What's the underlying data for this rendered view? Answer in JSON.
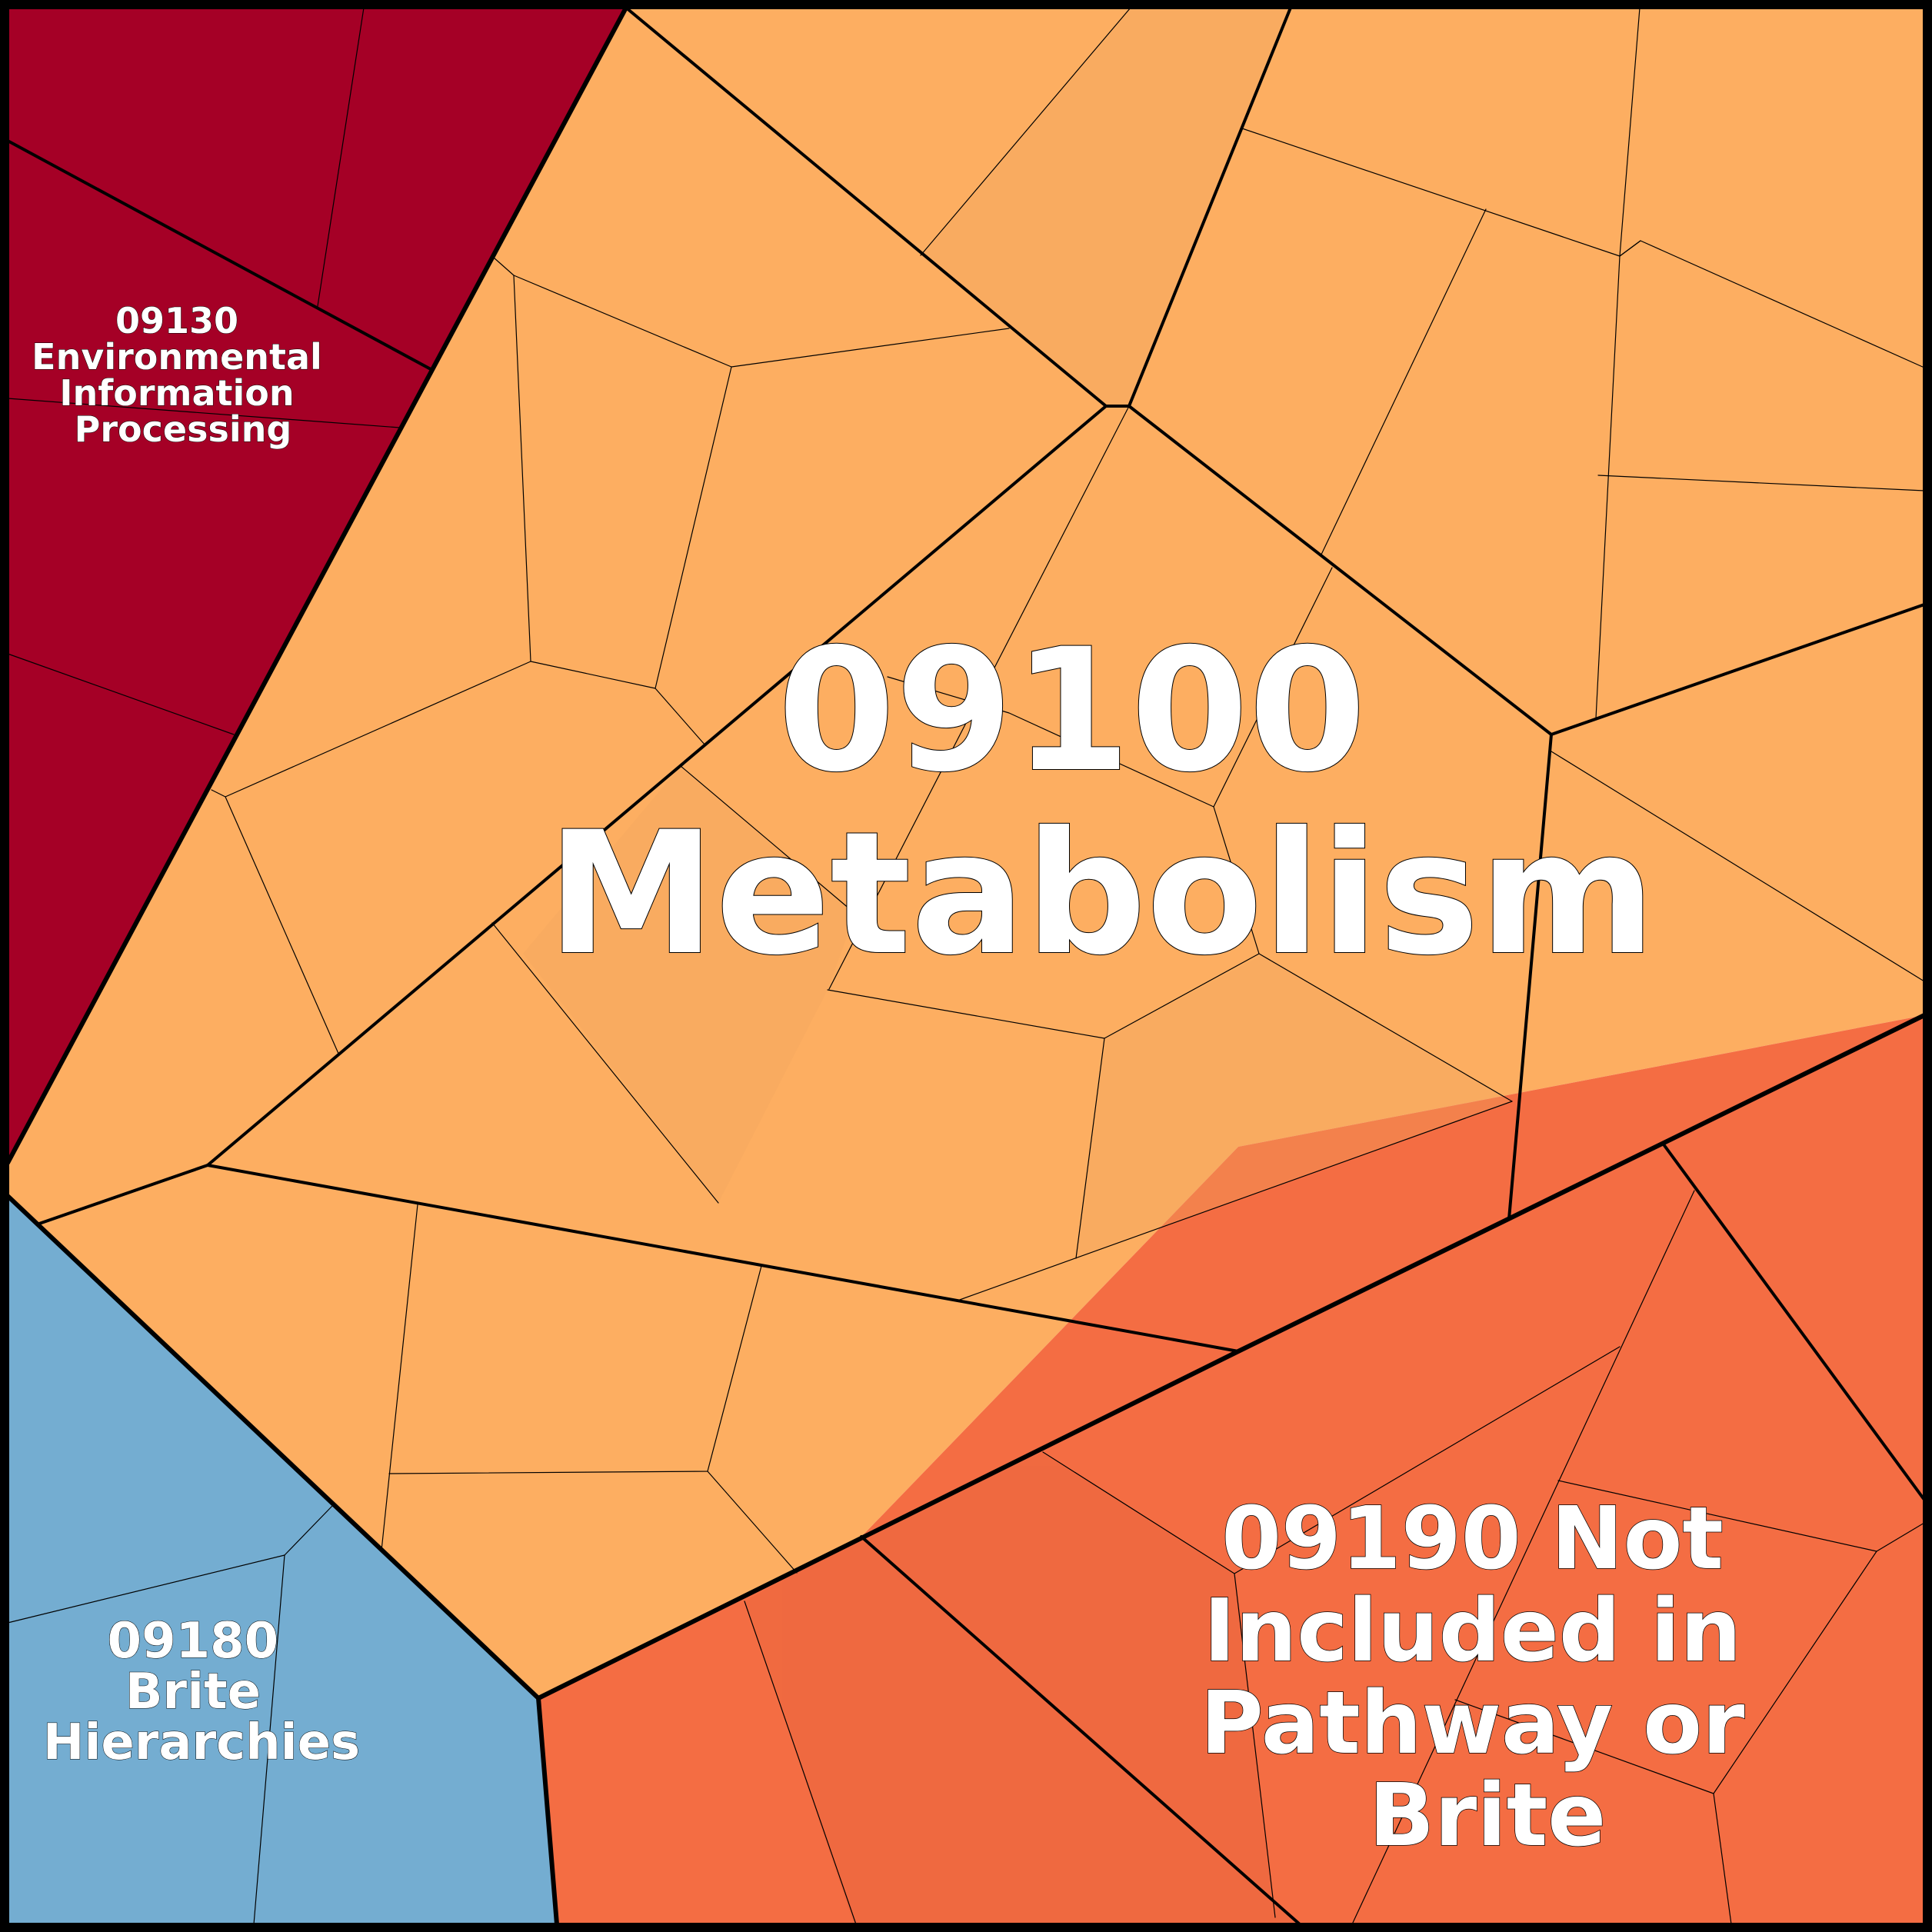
{
  "regions": [
    {
      "code": "09100",
      "name": "Metabolism",
      "label_lines": [
        "09100",
        "Metabolism"
      ],
      "color": "#FDAE61"
    },
    {
      "code": "09130",
      "name": "Environmental Information Processing",
      "label_lines": [
        "09130",
        "Environmental",
        "Information",
        "Processing"
      ],
      "color": "#A50026"
    },
    {
      "code": "09180",
      "name": "Brite Hierarchies",
      "label_lines": [
        "09180",
        "Brite",
        "Hierarchies"
      ],
      "color": "#74ADD1"
    },
    {
      "code": "09190",
      "name": "Not Included in Pathway or Brite",
      "label_lines": [
        "09190 Not",
        "Included in",
        "Pathway or",
        "Brite"
      ],
      "color": "#F46D43"
    }
  ]
}
